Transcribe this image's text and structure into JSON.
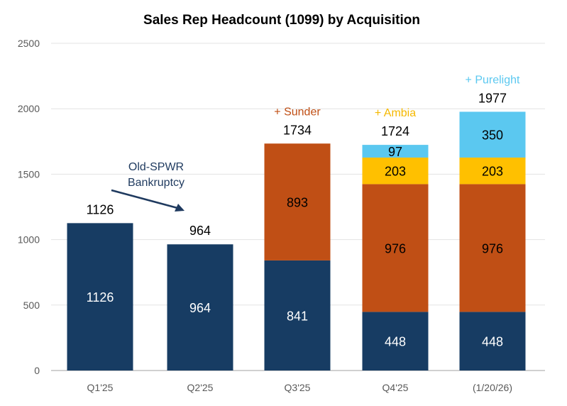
{
  "chart_data": {
    "type": "bar",
    "stacked": true,
    "title": "Sales Rep Headcount (1099) by Acquisition",
    "xlabel": "",
    "ylabel": "",
    "ylim": [
      0,
      2500
    ],
    "yticks": [
      0,
      500,
      1000,
      1500,
      2000,
      2500
    ],
    "grid": true,
    "categories": [
      "Q1'25",
      "Q2'25",
      "Q3'25",
      "Q4'25",
      "(1/20/26)"
    ],
    "series": [
      {
        "color": "#173c63",
        "label_color": "#ffffff",
        "values": [
          1126,
          964,
          841,
          448,
          448
        ]
      },
      {
        "color": "#c04f15",
        "label_color": "#000000",
        "values": [
          0,
          0,
          893,
          976,
          976
        ]
      },
      {
        "color": "#ffc000",
        "label_color": "#000000",
        "values": [
          0,
          0,
          0,
          203,
          203
        ]
      },
      {
        "color": "#5bc8f0",
        "label_color": "#000000",
        "values": [
          0,
          0,
          0,
          97,
          350
        ]
      }
    ],
    "totals": [
      1126,
      964,
      1734,
      1724,
      1977
    ],
    "annotations": [
      {
        "text": "+ Sunder",
        "category": "Q3'25",
        "color": "#c04f15"
      },
      {
        "text": "+ Ambia",
        "category": "Q4'25",
        "color": "#f5b800"
      },
      {
        "text": "+ Purelight",
        "category": "(1/20/26)",
        "color": "#5bc8f0"
      }
    ],
    "callout": {
      "lines": [
        "Old-SPWR",
        "Bankruptcy"
      ],
      "color": "#1f3a5f"
    }
  }
}
